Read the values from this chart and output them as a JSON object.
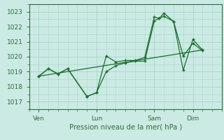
{
  "bg_color": "#cceae4",
  "grid_color": "#a8d5cb",
  "line_color": "#1a6e2e",
  "tick_label_color": "#2d6e3e",
  "xlabel": "Pression niveau de la mer( hPa )",
  "ylim": [
    1016.5,
    1023.5
  ],
  "yticks": [
    1017,
    1018,
    1019,
    1020,
    1021,
    1022,
    1023
  ],
  "x_day_labels": [
    "Ven",
    "Lun",
    "Sam",
    "Dim"
  ],
  "x_tick_positions": [
    0,
    3,
    6,
    8
  ],
  "xlim": [
    -0.5,
    9.5
  ],
  "line1_x": [
    0,
    0.5,
    1.0,
    1.5,
    2.5,
    3.0,
    3.5,
    4.0,
    4.5,
    5.0,
    5.5,
    6.0,
    6.25,
    6.5,
    7.0,
    7.5,
    8.0,
    8.5
  ],
  "line1_y": [
    1018.7,
    1019.2,
    1018.85,
    1019.2,
    1017.35,
    1017.6,
    1019.0,
    1019.4,
    1019.6,
    1019.7,
    1019.7,
    1022.4,
    1022.55,
    1022.7,
    1022.35,
    1019.1,
    1021.15,
    1020.45
  ],
  "line2_x": [
    0,
    0.5,
    1.0,
    1.5,
    2.5,
    3.0,
    3.5,
    4.0,
    4.5,
    5.0,
    5.5,
    6.0,
    6.25,
    6.5,
    7.0,
    7.5,
    8.0,
    8.5
  ],
  "line2_y": [
    1018.7,
    1019.2,
    1018.85,
    1019.2,
    1017.35,
    1017.6,
    1020.05,
    1019.65,
    1019.75,
    1019.75,
    1019.95,
    1022.65,
    1022.55,
    1022.9,
    1022.35,
    1020.05,
    1020.9,
    1020.4
  ],
  "line3_x": [
    0,
    8.5
  ],
  "line3_y": [
    1018.7,
    1020.45
  ]
}
